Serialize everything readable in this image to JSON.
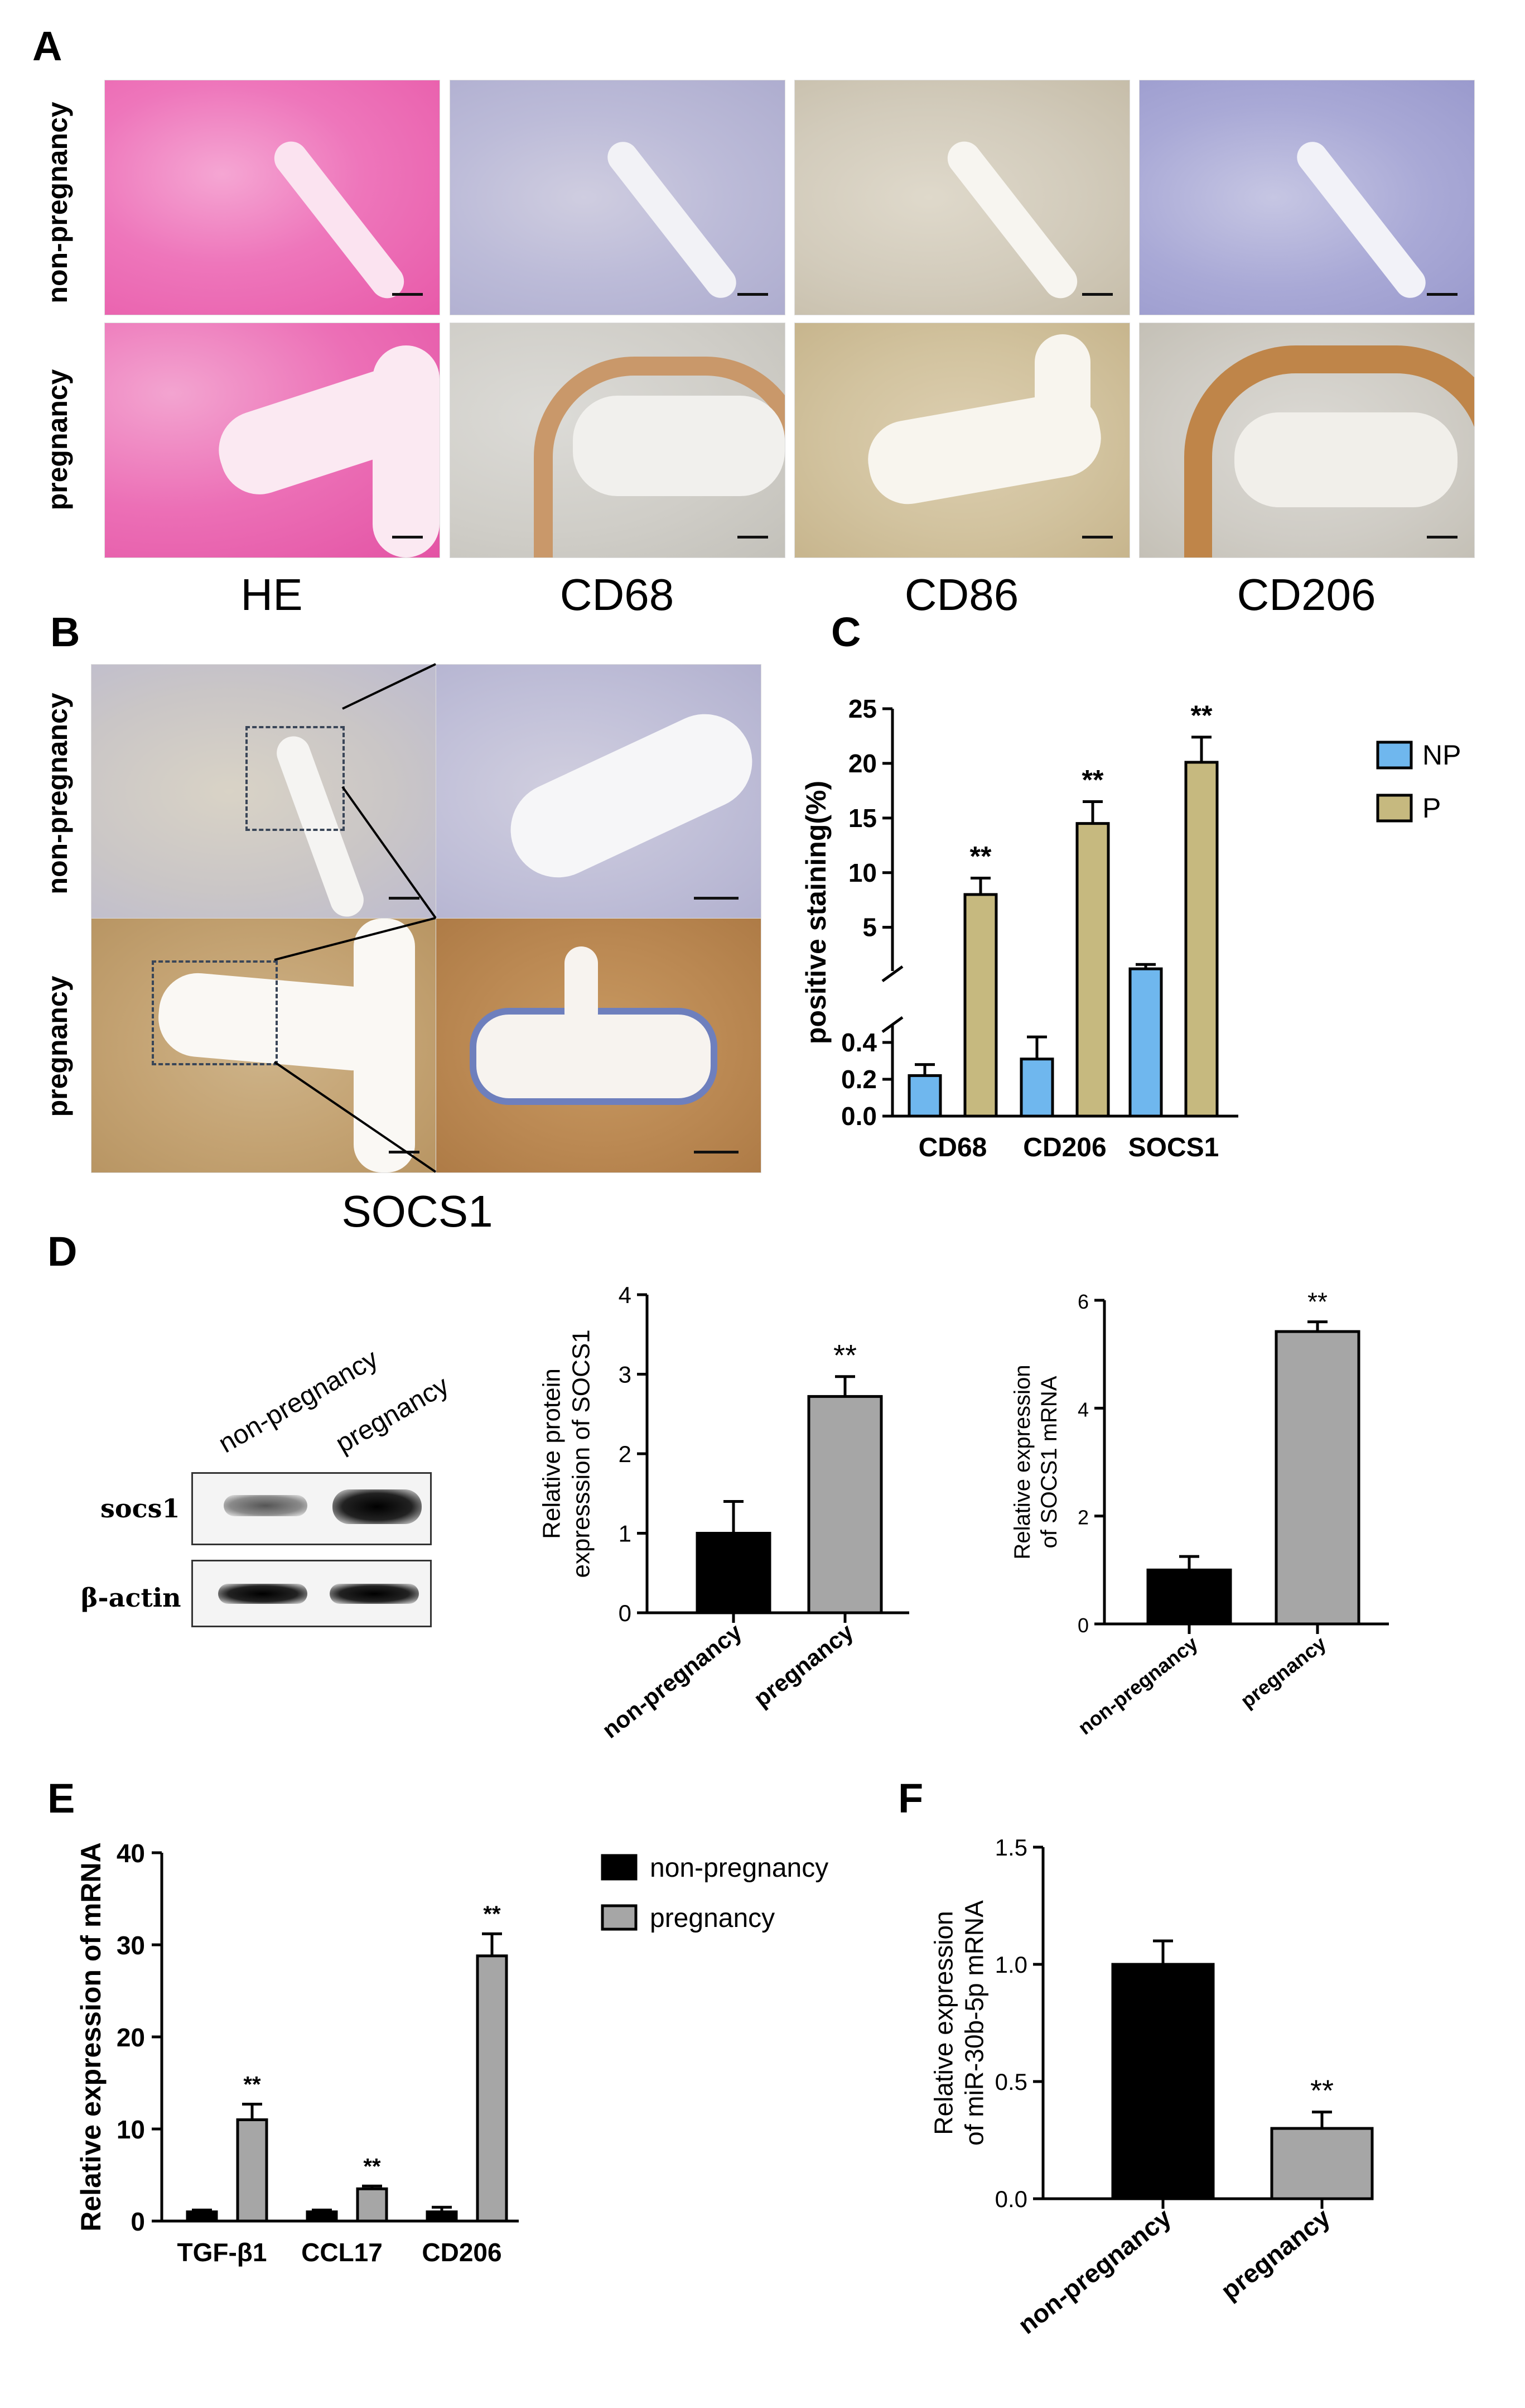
{
  "panels": {
    "A": "A",
    "B": "B",
    "C": "C",
    "D": "D",
    "E": "E",
    "F": "F"
  },
  "panel_a": {
    "rows": [
      "non-pregnancy",
      "pregnancy"
    ],
    "columns": [
      "HE",
      "CD68",
      "CD86",
      "CD206"
    ]
  },
  "panel_b": {
    "rows": [
      "non-pregnancy",
      "pregnancy"
    ],
    "caption": "SOCS1"
  },
  "panel_d_blot": {
    "lanes": [
      "non-pregnancy",
      "pregnancy"
    ],
    "bands": [
      "socs1",
      "β-actin"
    ]
  },
  "colors": {
    "np_blue": "#6fb7ee",
    "p_khaki": "#c6b97f",
    "black": "#000000",
    "gray": "#a6a6a6"
  },
  "chart_data": [
    {
      "id": "C",
      "type": "bar",
      "categories": [
        "CD68",
        "CD206",
        "SOCS1"
      ],
      "series": [
        {
          "name": "NP",
          "values": [
            0.22,
            0.31,
            1.2
          ],
          "errors": [
            0.06,
            0.12,
            0.4
          ]
        },
        {
          "name": "P",
          "values": [
            8.0,
            14.5,
            20.1
          ],
          "errors": [
            1.5,
            2.0,
            2.3
          ]
        }
      ],
      "significance": [
        "**",
        "**",
        "**"
      ],
      "ylabel": "positive staining(%)",
      "y_ticks_lower": [
        "0.0",
        "0.2",
        "0.4"
      ],
      "y_ticks_upper": [
        "5",
        "10",
        "15",
        "20",
        "25"
      ],
      "ylim_lower": [
        0,
        0.5
      ],
      "ylim_upper": [
        1,
        25
      ],
      "legend": "right"
    },
    {
      "id": "D1",
      "type": "bar",
      "categories": [
        "non-pregnancy",
        "pregnancy"
      ],
      "values": [
        1.0,
        2.72
      ],
      "errors": [
        0.4,
        0.25
      ],
      "significance": [
        "",
        "**"
      ],
      "ylabel": "Relative protein expresssion of SOCS1",
      "ylabel_lines": [
        "Relative protein",
        "expresssion of SOCS1"
      ],
      "y_ticks": [
        "0",
        "1",
        "2",
        "3",
        "4"
      ],
      "ylim": [
        0,
        4
      ]
    },
    {
      "id": "D2",
      "type": "bar",
      "categories": [
        "non-pregnancy",
        "pregnancy"
      ],
      "values": [
        1.0,
        5.42
      ],
      "errors": [
        0.25,
        0.18
      ],
      "significance": [
        "",
        "**"
      ],
      "ylabel": "Relative expression of SOCS1 mRNA",
      "ylabel_lines": [
        "Relative expression",
        "of SOCS1 mRNA"
      ],
      "y_ticks": [
        "0",
        "2",
        "4",
        "6"
      ],
      "ylim": [
        0,
        6
      ]
    },
    {
      "id": "E",
      "type": "bar",
      "categories": [
        "TGF-β1",
        "CCL17",
        "CD206"
      ],
      "series": [
        {
          "name": "non-pregnancy",
          "values": [
            1.0,
            1.0,
            1.0
          ],
          "errors": [
            0.2,
            0.2,
            0.5
          ]
        },
        {
          "name": "pregnancy",
          "values": [
            11.0,
            3.5,
            28.8
          ],
          "errors": [
            1.7,
            0.3,
            2.4
          ]
        }
      ],
      "significance": [
        "**",
        "**",
        "**"
      ],
      "ylabel": "Relative expression of mRNA",
      "y_ticks": [
        "0",
        "10",
        "20",
        "30",
        "40"
      ],
      "ylim": [
        0,
        40
      ],
      "legend": "right"
    },
    {
      "id": "F",
      "type": "bar",
      "categories": [
        "non-pregnancy",
        "pregnancy"
      ],
      "values": [
        1.0,
        0.3
      ],
      "errors": [
        0.1,
        0.07
      ],
      "significance": [
        "",
        "**"
      ],
      "ylabel": "Relative expression of miR-30b-5p mRNA",
      "ylabel_lines": [
        "Relative expression",
        "of miR-30b-5p mRNA"
      ],
      "y_ticks": [
        "0.0",
        "0.5",
        "1.0",
        "1.5"
      ],
      "ylim": [
        0,
        1.5
      ]
    }
  ]
}
